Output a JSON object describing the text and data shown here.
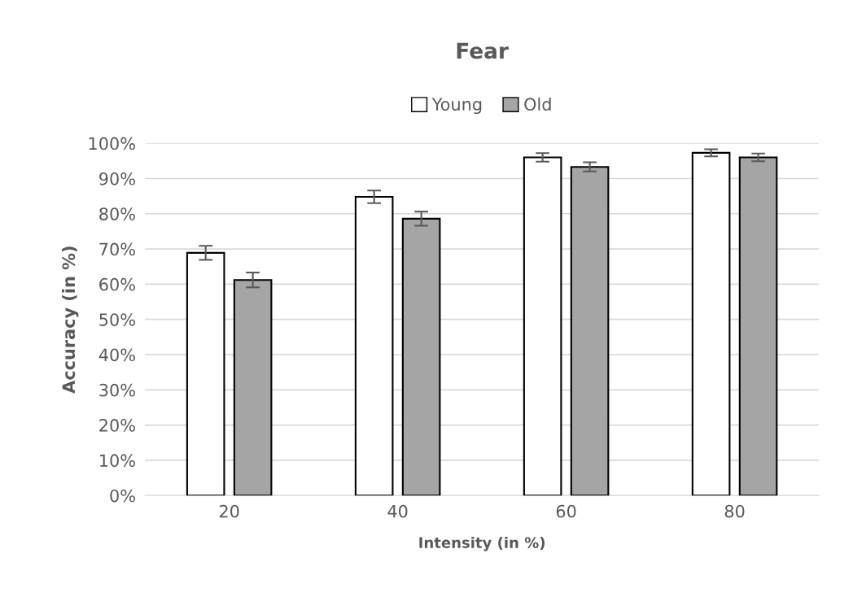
{
  "chart_data": {
    "type": "bar",
    "title": "Fear",
    "xlabel": "Intensity (in %)",
    "ylabel": "Accuracy (in %)",
    "categories": [
      "20",
      "40",
      "60",
      "80"
    ],
    "series": [
      {
        "name": "Young",
        "color": "#ffffff",
        "values": [
          68.9,
          84.8,
          96.0,
          97.3
        ],
        "errors": [
          2.0,
          1.8,
          1.2,
          1.0
        ]
      },
      {
        "name": "Old",
        "color": "#a5a5a5",
        "values": [
          61.2,
          78.6,
          93.3,
          96.0
        ],
        "errors": [
          2.1,
          2.0,
          1.3,
          1.1
        ]
      }
    ],
    "ylim": [
      0,
      100
    ],
    "yticks": [
      {
        "value": 0,
        "label": "0%"
      },
      {
        "value": 10,
        "label": "10%"
      },
      {
        "value": 20,
        "label": "20%"
      },
      {
        "value": 30,
        "label": "30%"
      },
      {
        "value": 40,
        "label": "40%"
      },
      {
        "value": 50,
        "label": "50%"
      },
      {
        "value": 60,
        "label": "60%"
      },
      {
        "value": 70,
        "label": "70%"
      },
      {
        "value": 80,
        "label": "80%"
      },
      {
        "value": 90,
        "label": "90%"
      },
      {
        "value": 100,
        "label": "100%"
      }
    ],
    "grid": "y",
    "legend": "top"
  }
}
